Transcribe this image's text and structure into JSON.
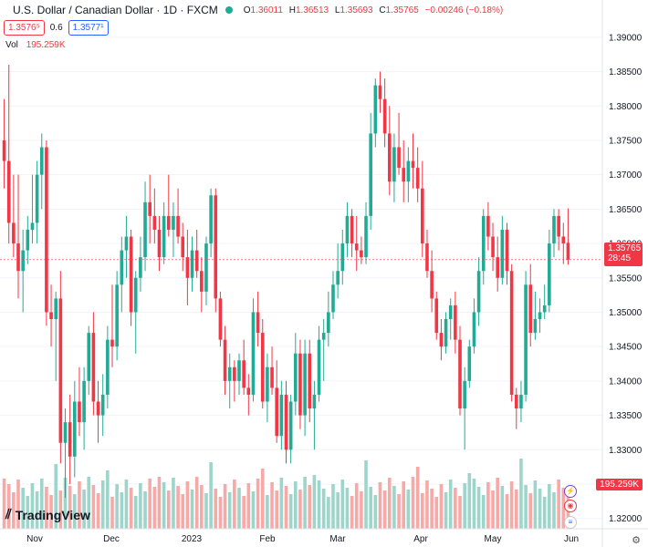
{
  "header": {
    "title": "U.S. Dollar / Canadian Dollar · 1D · FXCM",
    "o_label": "O",
    "o_value": "1.36011",
    "h_label": "H",
    "h_value": "1.36513",
    "l_label": "L",
    "l_value": "1.35693",
    "c_label": "C",
    "c_value": "1.35765",
    "change": "−0.00246 (−0.18%)",
    "bid": "1.3576⁵",
    "spread": "0.6",
    "ask": "1.3577¹",
    "vol_label": "Vol",
    "vol_value": "195.259K"
  },
  "price_tag": {
    "price": "1.35765",
    "countdown": "28:45"
  },
  "volume_tag": "195.259K",
  "logo": "TradingView",
  "colors": {
    "up": "#22ab94",
    "down": "#f23645",
    "vol_up": "#9ed5cb",
    "vol_down": "#f7a9a7"
  },
  "chart_data": {
    "type": "candlestick",
    "y_ticks": [
      "1.39000",
      "1.38500",
      "1.38000",
      "1.37500",
      "1.37000",
      "1.36500",
      "1.36000",
      "1.35500",
      "1.35000",
      "1.34500",
      "1.34000",
      "1.33500",
      "1.33000",
      "1.32500",
      "1.32000"
    ],
    "ylim": [
      1.3185,
      1.3925
    ],
    "x_ticks": [
      "Nov",
      "Dec",
      "2023",
      "Feb",
      "Mar",
      "Apr",
      "May",
      "Jun"
    ],
    "last_price": 1.35765,
    "candles": [
      [
        1.375,
        1.381,
        1.368,
        1.372
      ],
      [
        1.372,
        1.386,
        1.36,
        1.363
      ],
      [
        1.363,
        1.37,
        1.358,
        1.36
      ],
      [
        1.36,
        1.37,
        1.352,
        1.356
      ],
      [
        1.356,
        1.362,
        1.35,
        1.359
      ],
      [
        1.359,
        1.364,
        1.357,
        1.362
      ],
      [
        1.362,
        1.37,
        1.36,
        1.363
      ],
      [
        1.363,
        1.372,
        1.36,
        1.37
      ],
      [
        1.37,
        1.376,
        1.365,
        1.374
      ],
      [
        1.374,
        1.375,
        1.348,
        1.35
      ],
      [
        1.35,
        1.354,
        1.345,
        1.349
      ],
      [
        1.349,
        1.353,
        1.34,
        1.352
      ],
      [
        1.352,
        1.356,
        1.328,
        1.331
      ],
      [
        1.331,
        1.336,
        1.323,
        1.334
      ],
      [
        1.334,
        1.338,
        1.325,
        1.329
      ],
      [
        1.329,
        1.34,
        1.326,
        1.337
      ],
      [
        1.337,
        1.342,
        1.332,
        1.334
      ],
      [
        1.334,
        1.342,
        1.33,
        1.34
      ],
      [
        1.34,
        1.348,
        1.338,
        1.347
      ],
      [
        1.347,
        1.35,
        1.335,
        1.337
      ],
      [
        1.337,
        1.34,
        1.331,
        1.335
      ],
      [
        1.335,
        1.341,
        1.332,
        1.338
      ],
      [
        1.338,
        1.348,
        1.336,
        1.346
      ],
      [
        1.346,
        1.354,
        1.342,
        1.345
      ],
      [
        1.345,
        1.356,
        1.343,
        1.354
      ],
      [
        1.354,
        1.361,
        1.35,
        1.359
      ],
      [
        1.359,
        1.364,
        1.355,
        1.361
      ],
      [
        1.361,
        1.362,
        1.348,
        1.35
      ],
      [
        1.35,
        1.356,
        1.344,
        1.355
      ],
      [
        1.355,
        1.361,
        1.353,
        1.358
      ],
      [
        1.358,
        1.369,
        1.356,
        1.366
      ],
      [
        1.366,
        1.37,
        1.36,
        1.364
      ],
      [
        1.364,
        1.368,
        1.36,
        1.362
      ],
      [
        1.362,
        1.364,
        1.356,
        1.358
      ],
      [
        1.358,
        1.366,
        1.357,
        1.364
      ],
      [
        1.364,
        1.37,
        1.361,
        1.362
      ],
      [
        1.362,
        1.366,
        1.358,
        1.364
      ],
      [
        1.364,
        1.368,
        1.36,
        1.361
      ],
      [
        1.361,
        1.363,
        1.356,
        1.358
      ],
      [
        1.358,
        1.362,
        1.351,
        1.355
      ],
      [
        1.355,
        1.361,
        1.353,
        1.359
      ],
      [
        1.359,
        1.362,
        1.355,
        1.356
      ],
      [
        1.356,
        1.358,
        1.35,
        1.353
      ],
      [
        1.353,
        1.361,
        1.351,
        1.36
      ],
      [
        1.36,
        1.368,
        1.358,
        1.367
      ],
      [
        1.367,
        1.368,
        1.35,
        1.352
      ],
      [
        1.352,
        1.353,
        1.345,
        1.346
      ],
      [
        1.346,
        1.348,
        1.338,
        1.34
      ],
      [
        1.34,
        1.344,
        1.336,
        1.342
      ],
      [
        1.342,
        1.343,
        1.337,
        1.34
      ],
      [
        1.34,
        1.344,
        1.338,
        1.343
      ],
      [
        1.343,
        1.346,
        1.338,
        1.339
      ],
      [
        1.339,
        1.341,
        1.335,
        1.338
      ],
      [
        1.338,
        1.352,
        1.337,
        1.35
      ],
      [
        1.35,
        1.353,
        1.345,
        1.347
      ],
      [
        1.347,
        1.349,
        1.336,
        1.337
      ],
      [
        1.337,
        1.344,
        1.334,
        1.342
      ],
      [
        1.342,
        1.345,
        1.338,
        1.339
      ],
      [
        1.339,
        1.343,
        1.331,
        1.332
      ],
      [
        1.332,
        1.34,
        1.33,
        1.338
      ],
      [
        1.338,
        1.34,
        1.328,
        1.33
      ],
      [
        1.33,
        1.338,
        1.328,
        1.337
      ],
      [
        1.337,
        1.347,
        1.335,
        1.344
      ],
      [
        1.344,
        1.346,
        1.333,
        1.335
      ],
      [
        1.335,
        1.346,
        1.332,
        1.344
      ],
      [
        1.344,
        1.346,
        1.334,
        1.336
      ],
      [
        1.336,
        1.34,
        1.33,
        1.338
      ],
      [
        1.338,
        1.348,
        1.337,
        1.346
      ],
      [
        1.346,
        1.349,
        1.34,
        1.347
      ],
      [
        1.347,
        1.353,
        1.345,
        1.35
      ],
      [
        1.35,
        1.356,
        1.349,
        1.354
      ],
      [
        1.354,
        1.36,
        1.352,
        1.356
      ],
      [
        1.356,
        1.362,
        1.354,
        1.36
      ],
      [
        1.36,
        1.366,
        1.358,
        1.364
      ],
      [
        1.364,
        1.365,
        1.358,
        1.36
      ],
      [
        1.36,
        1.364,
        1.356,
        1.359
      ],
      [
        1.359,
        1.361,
        1.357,
        1.358
      ],
      [
        1.358,
        1.366,
        1.357,
        1.364
      ],
      [
        1.364,
        1.379,
        1.362,
        1.376
      ],
      [
        1.376,
        1.384,
        1.374,
        1.383
      ],
      [
        1.383,
        1.385,
        1.379,
        1.381
      ],
      [
        1.381,
        1.384,
        1.374,
        1.376
      ],
      [
        1.376,
        1.38,
        1.367,
        1.369
      ],
      [
        1.369,
        1.376,
        1.366,
        1.374
      ],
      [
        1.374,
        1.379,
        1.37,
        1.371
      ],
      [
        1.371,
        1.375,
        1.366,
        1.369
      ],
      [
        1.369,
        1.374,
        1.366,
        1.372
      ],
      [
        1.372,
        1.376,
        1.368,
        1.371
      ],
      [
        1.371,
        1.374,
        1.366,
        1.368
      ],
      [
        1.368,
        1.372,
        1.358,
        1.36
      ],
      [
        1.36,
        1.362,
        1.355,
        1.356
      ],
      [
        1.356,
        1.359,
        1.35,
        1.352
      ],
      [
        1.352,
        1.353,
        1.346,
        1.347
      ],
      [
        1.347,
        1.349,
        1.343,
        1.345
      ],
      [
        1.345,
        1.35,
        1.344,
        1.349
      ],
      [
        1.349,
        1.352,
        1.346,
        1.351
      ],
      [
        1.351,
        1.353,
        1.344,
        1.346
      ],
      [
        1.346,
        1.348,
        1.335,
        1.336
      ],
      [
        1.336,
        1.342,
        1.33,
        1.34
      ],
      [
        1.34,
        1.346,
        1.339,
        1.345
      ],
      [
        1.345,
        1.352,
        1.344,
        1.35
      ],
      [
        1.35,
        1.358,
        1.348,
        1.356
      ],
      [
        1.356,
        1.365,
        1.354,
        1.364
      ],
      [
        1.364,
        1.366,
        1.359,
        1.361
      ],
      [
        1.361,
        1.363,
        1.356,
        1.358
      ],
      [
        1.358,
        1.361,
        1.353,
        1.355
      ],
      [
        1.355,
        1.364,
        1.354,
        1.362
      ],
      [
        1.362,
        1.363,
        1.354,
        1.356
      ],
      [
        1.356,
        1.357,
        1.337,
        1.338
      ],
      [
        1.338,
        1.339,
        1.333,
        1.336
      ],
      [
        1.336,
        1.34,
        1.334,
        1.338
      ],
      [
        1.338,
        1.356,
        1.337,
        1.354
      ],
      [
        1.354,
        1.357,
        1.345,
        1.347
      ],
      [
        1.347,
        1.353,
        1.346,
        1.349
      ],
      [
        1.349,
        1.352,
        1.347,
        1.35
      ],
      [
        1.35,
        1.354,
        1.349,
        1.351
      ],
      [
        1.351,
        1.362,
        1.35,
        1.36
      ],
      [
        1.36,
        1.365,
        1.358,
        1.364
      ],
      [
        1.364,
        1.365,
        1.359,
        1.361
      ],
      [
        1.361,
        1.363,
        1.357,
        1.36
      ],
      [
        1.3601,
        1.3651,
        1.3569,
        1.35765
      ]
    ],
    "volume_max": 100
  }
}
